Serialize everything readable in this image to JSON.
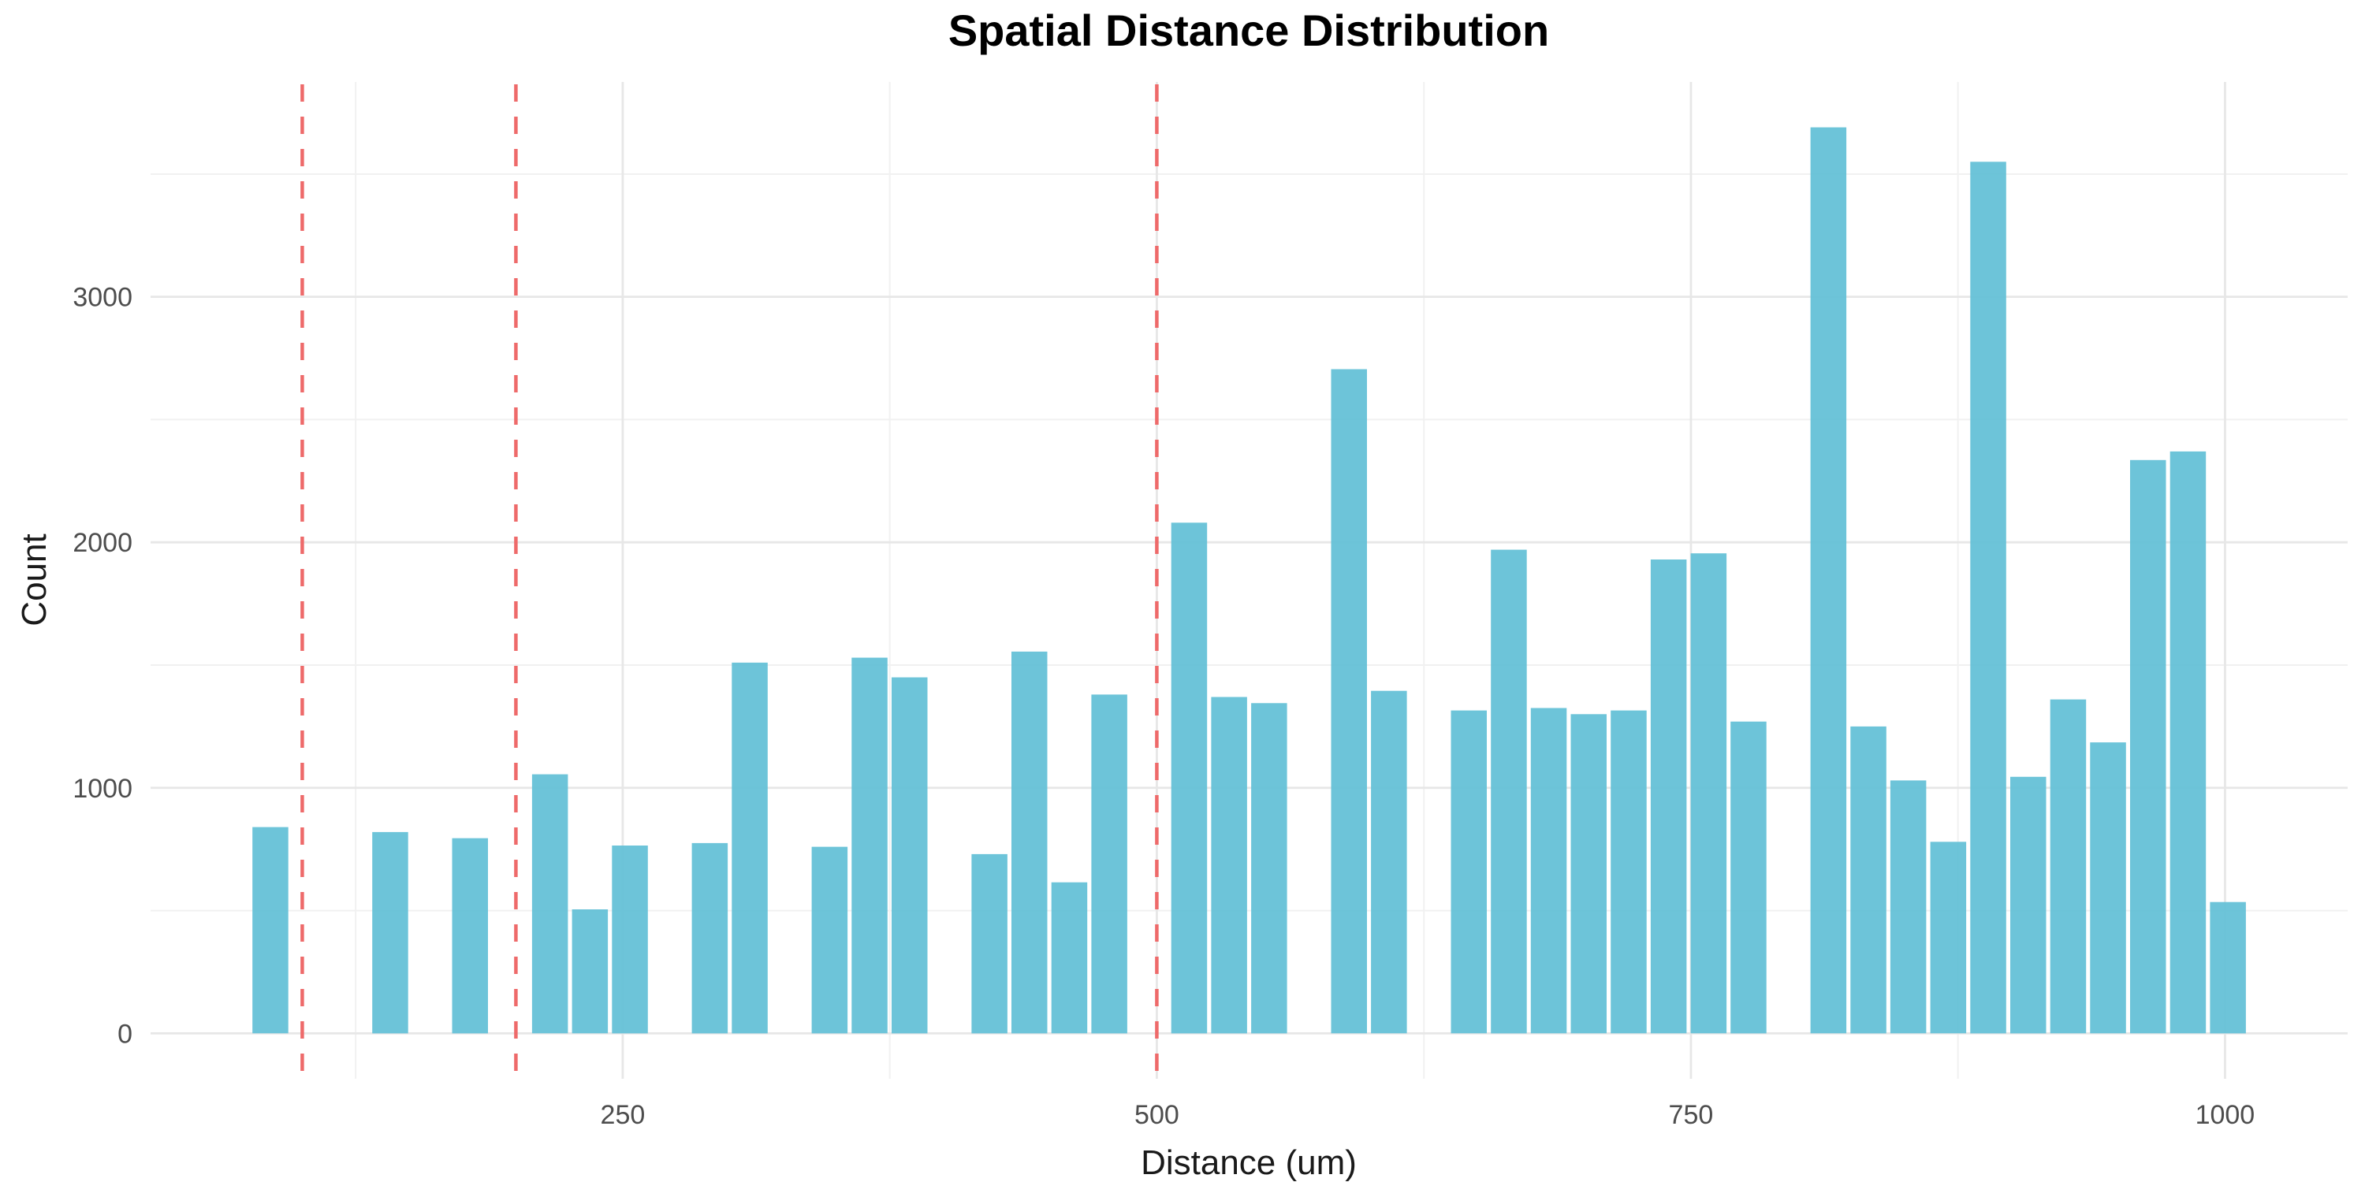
{
  "chart_data": {
    "type": "bar",
    "subtype": "histogram",
    "title": "Spatial Distance Distribution",
    "xlabel": "Distance (um)",
    "ylabel": "Count",
    "grid": true,
    "legend": false,
    "bin_width": 18.7,
    "bin_starts": [
      75.7,
      131.8,
      169.2,
      206.6,
      225.3,
      244.0,
      281.4,
      300.1,
      337.5,
      356.2,
      374.9,
      412.3,
      431.0,
      449.7,
      468.4,
      505.8,
      524.5,
      543.2,
      580.6,
      599.3,
      636.7,
      655.4,
      674.1,
      692.8,
      711.5,
      730.2,
      748.9,
      767.6,
      805.0,
      823.7,
      842.4,
      861.1,
      879.8,
      898.5,
      917.2,
      935.9,
      954.6,
      973.3,
      992.0
    ],
    "counts": [
      840,
      820,
      795,
      1055,
      505,
      765,
      775,
      1510,
      760,
      1530,
      1450,
      730,
      1555,
      615,
      1380,
      2080,
      1370,
      1345,
      2705,
      1395,
      1315,
      1970,
      1325,
      1300,
      1315,
      1930,
      1955,
      1270,
      3690,
      1250,
      1030,
      780,
      3550,
      1045,
      1360,
      1185,
      2335,
      2370,
      535
    ],
    "xlim": [
      29.0,
      1057.4
    ],
    "ylim": [
      -185,
      3875
    ],
    "x_major_ticks": [
      250,
      500,
      750,
      1000
    ],
    "x_minor_gridlines": [
      125,
      375,
      625,
      875
    ],
    "y_major_ticks": [
      0,
      1000,
      2000,
      3000
    ],
    "y_minor_gridlines": [
      500,
      1500,
      2500,
      3500
    ],
    "vlines": {
      "positions": [
        100,
        200,
        500
      ],
      "style": "dashed"
    },
    "colors": {
      "bar_fill": "#62c0d6",
      "vline": "#ee6a6a",
      "grid_major": "#e7e7e7",
      "grid_minor": "#f1f1f1",
      "tick_text": "#4d4d4d",
      "axis_title_text": "#1a1a1a",
      "title_text": "#000000",
      "background": "#ffffff"
    }
  }
}
